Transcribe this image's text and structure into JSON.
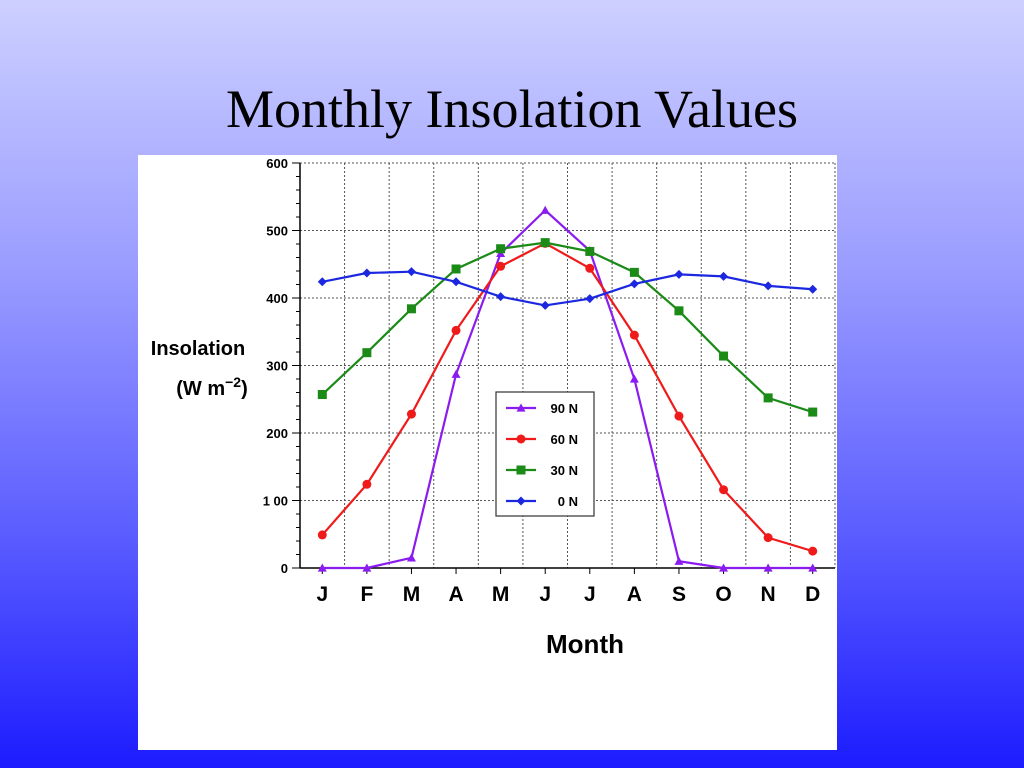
{
  "slide": {
    "title": "Monthly Insolation Values"
  },
  "chart_data": {
    "type": "line",
    "title": "",
    "xlabel": "Month",
    "ylabel_line1": "Insolation",
    "ylabel_unit_pre": "(W m",
    "ylabel_unit_sup": "−2",
    "ylabel_unit_post": ")",
    "categories": [
      "J",
      "F",
      "M",
      "A",
      "M",
      "J",
      "J",
      "A",
      "S",
      "O",
      "N",
      "D"
    ],
    "ylim": [
      0,
      600
    ],
    "yticks": [
      0,
      100,
      200,
      300,
      400,
      500,
      600
    ],
    "ytick_labels": [
      "0",
      "1 00",
      "200",
      "300",
      "400",
      "500",
      "600"
    ],
    "grid": true,
    "legend_position": "center-right",
    "series": [
      {
        "name": "90 N",
        "color": "#8b1cf0",
        "marker": "triangle",
        "values": [
          0,
          0,
          15,
          287,
          466,
          530,
          470,
          280,
          10,
          0,
          0,
          0
        ]
      },
      {
        "name": "60 N",
        "color": "#ef1a1a",
        "marker": "circle",
        "values": [
          49,
          124,
          228,
          352,
          447,
          481,
          444,
          345,
          225,
          116,
          45,
          25
        ]
      },
      {
        "name": "30 N",
        "color": "#1b8a17",
        "marker": "square",
        "values": [
          257,
          319,
          384,
          443,
          473,
          482,
          469,
          438,
          381,
          314,
          252,
          231
        ]
      },
      {
        "name": "0 N",
        "color": "#1c28e0",
        "marker": "diamond",
        "values": [
          424,
          437,
          439,
          424,
          402,
          389,
          399,
          421,
          435,
          432,
          418,
          413
        ]
      }
    ]
  }
}
